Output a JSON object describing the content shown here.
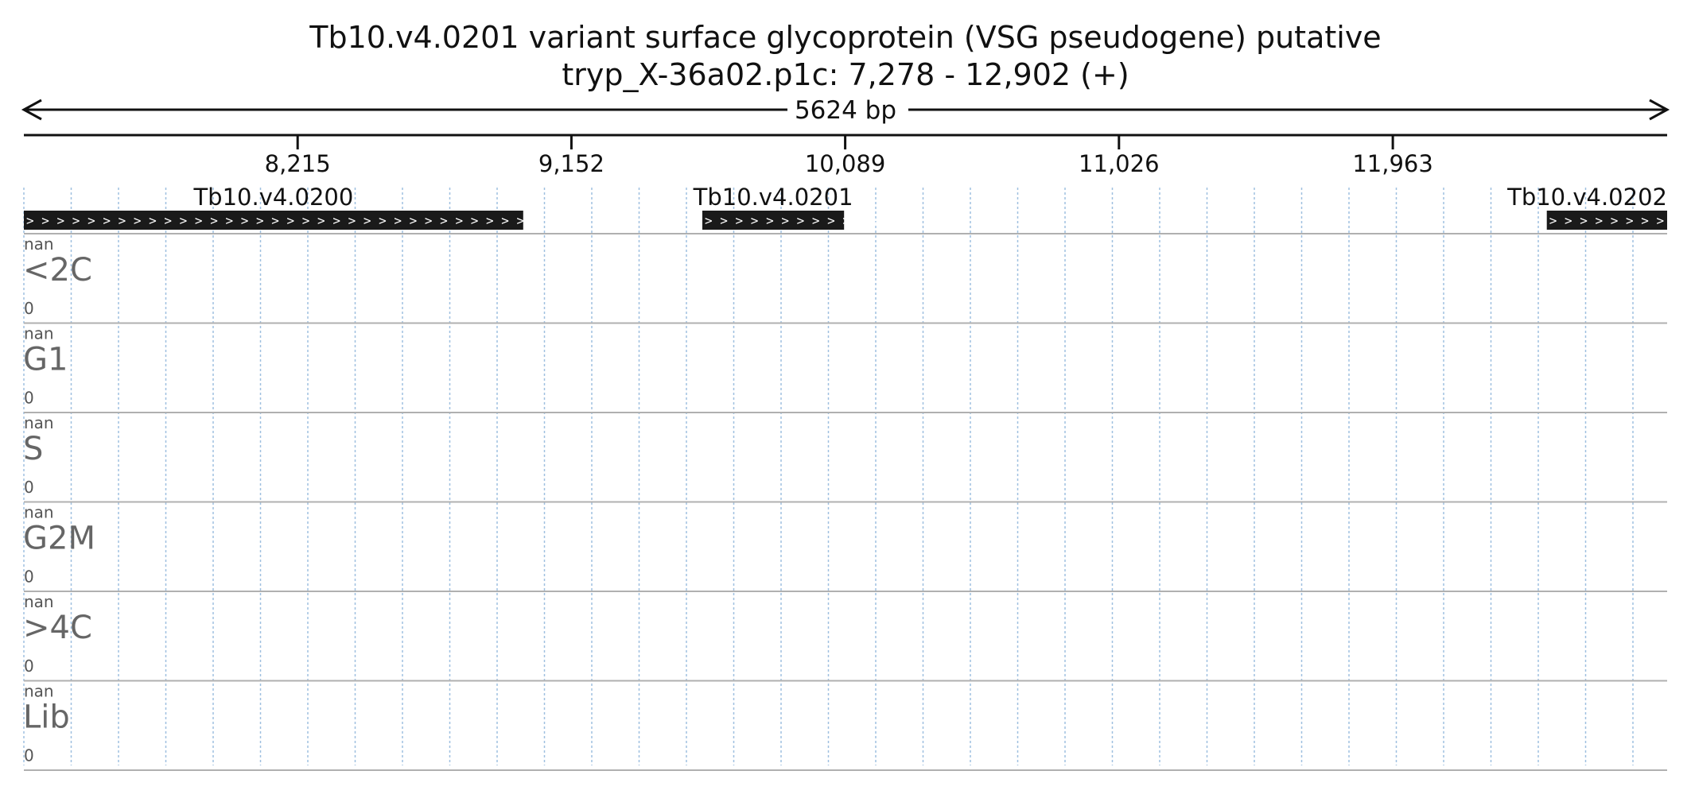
{
  "header": {
    "title": "Tb10.v4.0201  variant surface glycoprotein (VSG  pseudogene)  putative",
    "location": "tryp_X-36a02.p1c: 7,278 - 12,902 (+)"
  },
  "region": {
    "start": 7278,
    "end": 12902,
    "span_label": "5624 bp"
  },
  "ruler": {
    "ticks": [
      {
        "value": 8215,
        "label": "8,215"
      },
      {
        "value": 9152,
        "label": "9,152"
      },
      {
        "value": 10089,
        "label": "10,089"
      },
      {
        "value": 11026,
        "label": "11,026"
      },
      {
        "value": 11963,
        "label": "11,963"
      }
    ]
  },
  "genes": [
    {
      "id": "Tb10.v4.0200",
      "start": 7278,
      "end": 8987,
      "strand": "+"
    },
    {
      "id": "Tb10.v4.0201",
      "start": 9600,
      "end": 10085,
      "strand": "+"
    },
    {
      "id": "Tb10.v4.0202",
      "start": 12490,
      "end": 12902,
      "strand": "+"
    }
  ],
  "tracks": [
    {
      "name": "<2C",
      "max_label": "nan",
      "min_label": "0"
    },
    {
      "name": "G1",
      "max_label": "nan",
      "min_label": "0"
    },
    {
      "name": "S",
      "max_label": "nan",
      "min_label": "0"
    },
    {
      "name": "G2M",
      "max_label": "nan",
      "min_label": "0"
    },
    {
      "name": ">4C",
      "max_label": "nan",
      "min_label": "0"
    },
    {
      "name": "Lib",
      "max_label": "nan",
      "min_label": "0"
    }
  ],
  "colors": {
    "axis": "#111111",
    "gene_fill": "#1a1a1a",
    "gene_arrow": "#ffffff",
    "grid": "#9fc0e0",
    "track_separator": "#b0b0b0",
    "track_label": "#666666"
  }
}
